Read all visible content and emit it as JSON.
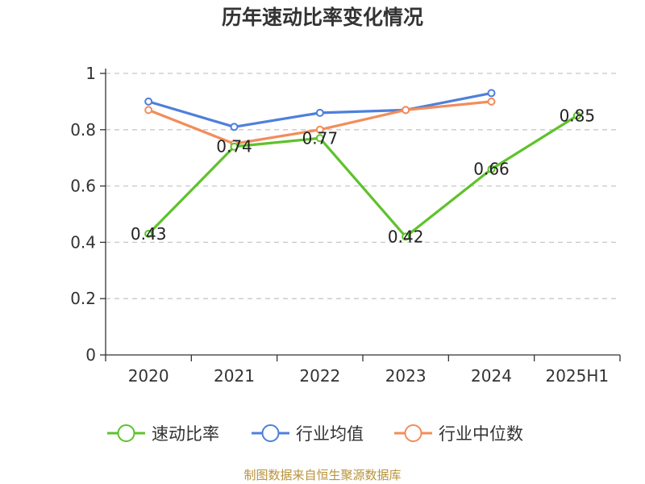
{
  "chart_data": {
    "type": "line",
    "title": "历年速动比率变化情况",
    "categories": [
      "2020",
      "2021",
      "2022",
      "2023",
      "2024",
      "2025H1"
    ],
    "ylim": [
      0,
      1
    ],
    "yticks": [
      "0",
      "0.2",
      "0.4",
      "0.6",
      "0.8",
      "1"
    ],
    "ytick_values": [
      0,
      0.2,
      0.4,
      0.6,
      0.8,
      1
    ],
    "grid": "horizontal dashed",
    "legend_position": "bottom",
    "series": [
      {
        "name": "速动比率",
        "color": "#5ec22b",
        "values": [
          0.43,
          0.74,
          0.77,
          0.42,
          0.66,
          0.85
        ],
        "labels": [
          "0.43",
          "0.74",
          "0.77",
          "0.42",
          "0.66",
          "0.85"
        ]
      },
      {
        "name": "行业均值",
        "color": "#4f7fdc",
        "values": [
          0.9,
          0.81,
          0.86,
          0.87,
          0.93,
          null
        ]
      },
      {
        "name": "行业中位数",
        "color": "#f28d5a",
        "values": [
          0.87,
          0.75,
          0.8,
          0.87,
          0.9,
          null
        ]
      }
    ]
  },
  "source": "制图数据来自恒生聚源数据库"
}
